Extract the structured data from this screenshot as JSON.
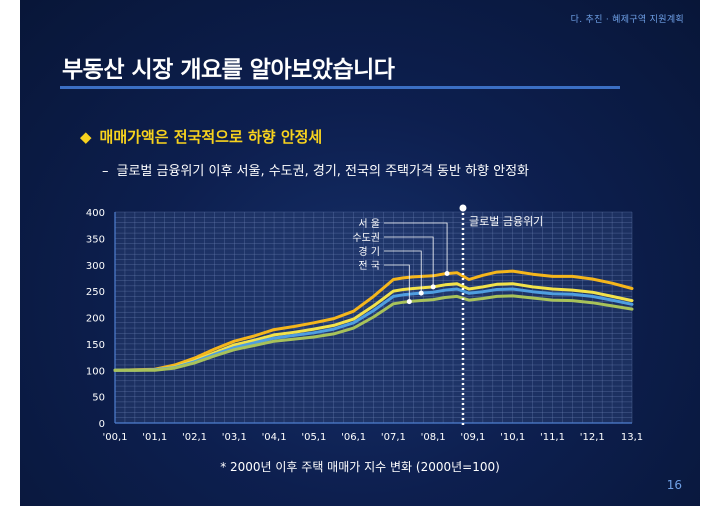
{
  "header": {
    "section": "다. 추진 · 혜제구역 지원계획"
  },
  "title": "부동산 시장 개요를 알아보았습니다",
  "bullet": {
    "icon": "diamond-bullet-icon",
    "text": "매매가액은 전국적으로 하향 안정세"
  },
  "sub": {
    "dash": "–",
    "text": "글로벌 금융위기 이후 서울, 수도권, 경기, 전국의 주택가격 동반 하향 안정화"
  },
  "caption": "* 2000년 이후 주택 매매가 지수 변화 (2000년=100)",
  "page_number": "16",
  "colors": {
    "orange": "#f5b61c",
    "yellow": "#f2e24a",
    "blue": "#4f9ee0",
    "green": "#a8c25a",
    "accent": "#3b6fc4"
  },
  "chart_data": {
    "type": "line",
    "x_ticks": [
      "'00,1",
      "'01,1",
      "'02,1",
      "'03,1",
      "'04,1",
      "'05,1",
      "'06,1",
      "'07,1",
      "'08,1",
      "'09,1",
      "'10,1",
      "'11,1",
      "'12,1",
      "13,1"
    ],
    "ylim": [
      0,
      400
    ],
    "y_ticks": [
      0,
      50,
      100,
      150,
      200,
      250,
      300,
      350,
      400
    ],
    "grid": true,
    "annotation": {
      "label": "글로벌 금융위기",
      "x": 2008.75
    },
    "series": [
      {
        "name": "서  울",
        "color": "#f5b61c",
        "x": [
          2000.0,
          2000.5,
          2001.0,
          2001.5,
          2002.0,
          2002.5,
          2003.0,
          2003.5,
          2004.0,
          2004.5,
          2005.0,
          2005.5,
          2006.0,
          2006.5,
          2007.0,
          2007.25,
          2007.5,
          2008.0,
          2008.3,
          2008.6,
          2008.9,
          2009.25,
          2009.6,
          2010.0,
          2010.5,
          2011.0,
          2011.5,
          2012.0,
          2012.5,
          2013.0
        ],
        "y": [
          100,
          101,
          102,
          110,
          123,
          140,
          155,
          165,
          177,
          183,
          190,
          198,
          212,
          240,
          272,
          275,
          277,
          279,
          283,
          285,
          272,
          280,
          286,
          288,
          282,
          278,
          278,
          273,
          265,
          255
        ]
      },
      {
        "name": "수도권",
        "color": "#f2e24a",
        "x": [
          2000.0,
          2000.5,
          2001.0,
          2001.5,
          2002.0,
          2002.5,
          2003.0,
          2003.5,
          2004.0,
          2004.5,
          2005.0,
          2005.5,
          2006.0,
          2006.5,
          2007.0,
          2007.25,
          2007.5,
          2008.0,
          2008.3,
          2008.6,
          2008.9,
          2009.25,
          2009.6,
          2010.0,
          2010.5,
          2011.0,
          2011.5,
          2012.0,
          2012.5,
          2013.0
        ],
        "y": [
          100,
          100,
          101,
          106,
          118,
          133,
          148,
          157,
          167,
          172,
          178,
          185,
          197,
          222,
          250,
          253,
          255,
          258,
          262,
          264,
          254,
          258,
          263,
          264,
          258,
          254,
          252,
          248,
          240,
          232
        ]
      },
      {
        "name": "경  기",
        "color": "#4f9ee0",
        "x": [
          2000.0,
          2000.5,
          2001.0,
          2001.5,
          2002.0,
          2002.5,
          2003.0,
          2003.5,
          2004.0,
          2004.5,
          2005.0,
          2005.5,
          2006.0,
          2006.5,
          2007.0,
          2007.25,
          2007.5,
          2008.0,
          2008.3,
          2008.6,
          2008.9,
          2009.25,
          2009.6,
          2010.0,
          2010.5,
          2011.0,
          2011.5,
          2012.0,
          2012.5,
          2013.0
        ],
        "y": [
          100,
          100,
          101,
          105,
          116,
          130,
          143,
          152,
          161,
          166,
          171,
          178,
          190,
          213,
          240,
          243,
          245,
          248,
          252,
          254,
          246,
          249,
          253,
          254,
          249,
          245,
          244,
          240,
          233,
          225
        ]
      },
      {
        "name": "전  국",
        "color": "#a8c25a",
        "x": [
          2000.0,
          2000.5,
          2001.0,
          2001.5,
          2002.0,
          2002.5,
          2003.0,
          2003.5,
          2004.0,
          2004.5,
          2005.0,
          2005.5,
          2006.0,
          2006.5,
          2007.0,
          2007.25,
          2007.5,
          2008.0,
          2008.3,
          2008.6,
          2008.9,
          2009.25,
          2009.6,
          2010.0,
          2010.5,
          2011.0,
          2011.5,
          2012.0,
          2012.5,
          2013.0
        ],
        "y": [
          100,
          100,
          100,
          104,
          114,
          127,
          139,
          147,
          155,
          159,
          163,
          169,
          180,
          201,
          226,
          229,
          231,
          234,
          238,
          240,
          233,
          236,
          240,
          241,
          237,
          233,
          232,
          228,
          222,
          216
        ]
      }
    ]
  }
}
